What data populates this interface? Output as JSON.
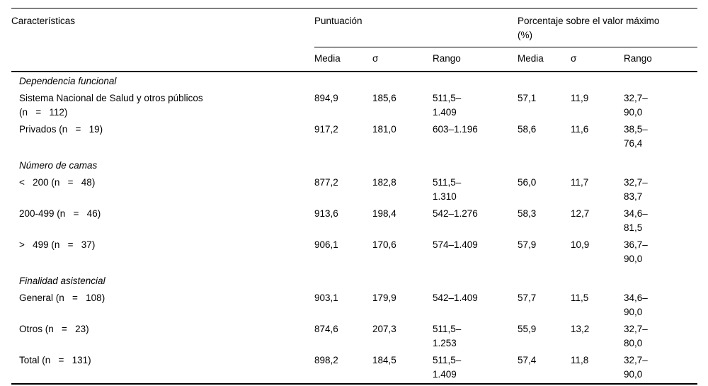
{
  "table": {
    "header": {
      "characteristics": "Características",
      "group1": "Puntuación",
      "group2": "Porcentaje sobre el valor máximo\n(%)",
      "subheaders": [
        "Media",
        "σ",
        "Rango",
        "Media",
        "σ",
        "Rango"
      ]
    },
    "rows": [
      {
        "type": "section",
        "label": "Dependencia funcional"
      },
      {
        "type": "data",
        "label": "Sistema Nacional de Salud y otros públicos\n(n   =   112)",
        "values": [
          "894,9",
          "185,6",
          "511,5–\n1.409",
          "57,1",
          "11,9",
          "32,7–\n90,0"
        ]
      },
      {
        "type": "data",
        "label": "Privados (n   =   19)",
        "values": [
          "917,2",
          "181,0",
          "603–1.196",
          "58,6",
          "11,6",
          "38,5–\n76,4"
        ]
      },
      {
        "type": "section",
        "label": "Número de camas"
      },
      {
        "type": "data",
        "label": "<   200 (n   =   48)",
        "values": [
          "877,2",
          "182,8",
          "511,5–\n1.310",
          "56,0",
          "11,7",
          "32,7–\n83,7"
        ]
      },
      {
        "type": "data",
        "label": "200-499 (n   =   46)",
        "values": [
          "913,6",
          "198,4",
          "542–1.276",
          "58,3",
          "12,7",
          "34,6–\n81,5"
        ]
      },
      {
        "type": "data",
        "label": ">   499 (n   =   37)",
        "values": [
          "906,1",
          "170,6",
          "574–1.409",
          "57,9",
          "10,9",
          "36,7–\n90,0"
        ]
      },
      {
        "type": "section",
        "label": "Finalidad asistencial"
      },
      {
        "type": "data",
        "label": "General (n   =   108)",
        "values": [
          "903,1",
          "179,9",
          "542–1.409",
          "57,7",
          "11,5",
          "34,6–\n90,0"
        ]
      },
      {
        "type": "data",
        "label": "Otros (n   =   23)",
        "values": [
          "874,6",
          "207,3",
          "511,5–\n1.253",
          "55,9",
          "13,2",
          "32,7–\n80,0"
        ]
      },
      {
        "type": "data",
        "label": "Total (n   =   131)",
        "values": [
          "898,2",
          "184,5",
          "511,5–\n1.409",
          "57,4",
          "11,8",
          "32,7–\n90,0"
        ]
      }
    ]
  }
}
